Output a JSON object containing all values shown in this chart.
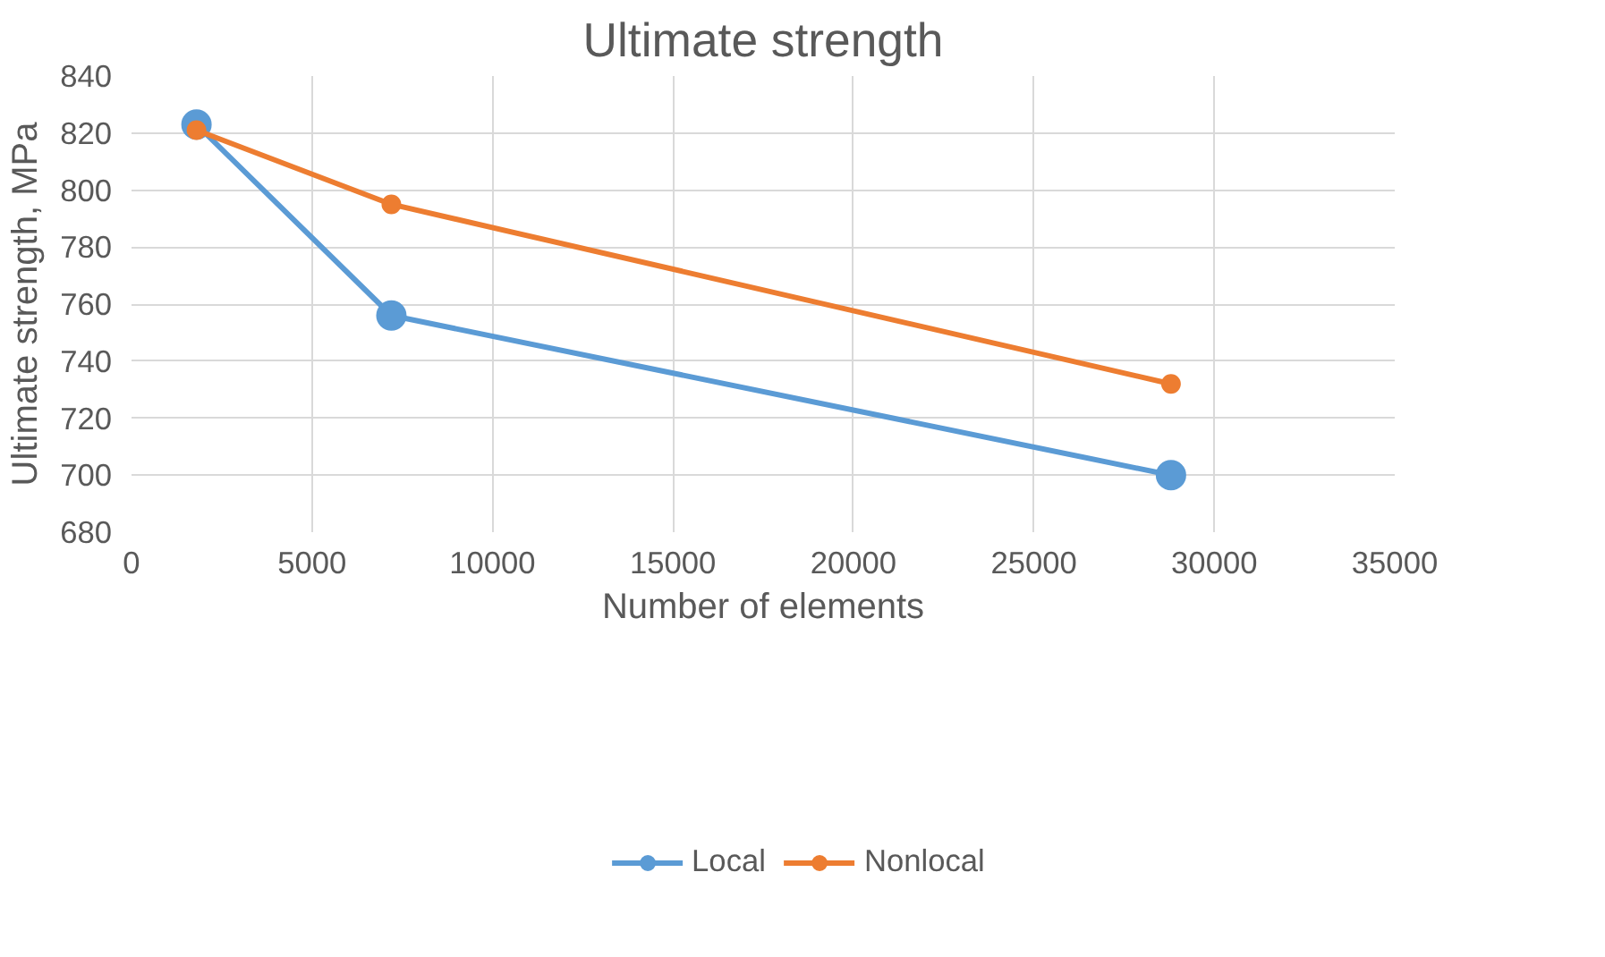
{
  "chart_data": {
    "type": "line",
    "title": "Ultimate strength",
    "xlabel": "Number of elements",
    "ylabel": "Ultimate strength, MPa",
    "x": [
      1800,
      7200,
      28800
    ],
    "series": [
      {
        "name": "Local",
        "color": "#5b9bd5",
        "values": [
          823,
          756,
          700
        ]
      },
      {
        "name": "Nonlocal",
        "color": "#ed7d31",
        "values": [
          821,
          795,
          732
        ]
      }
    ],
    "xlim": [
      0,
      35000
    ],
    "xticks": [
      0,
      5000,
      10000,
      15000,
      20000,
      25000,
      30000,
      35000
    ],
    "ylim": [
      680,
      840
    ],
    "yticks": [
      680,
      700,
      720,
      740,
      760,
      780,
      800,
      820,
      840
    ],
    "grid": true,
    "legend": "bottom",
    "marker": "circle",
    "line_style": "solid"
  }
}
